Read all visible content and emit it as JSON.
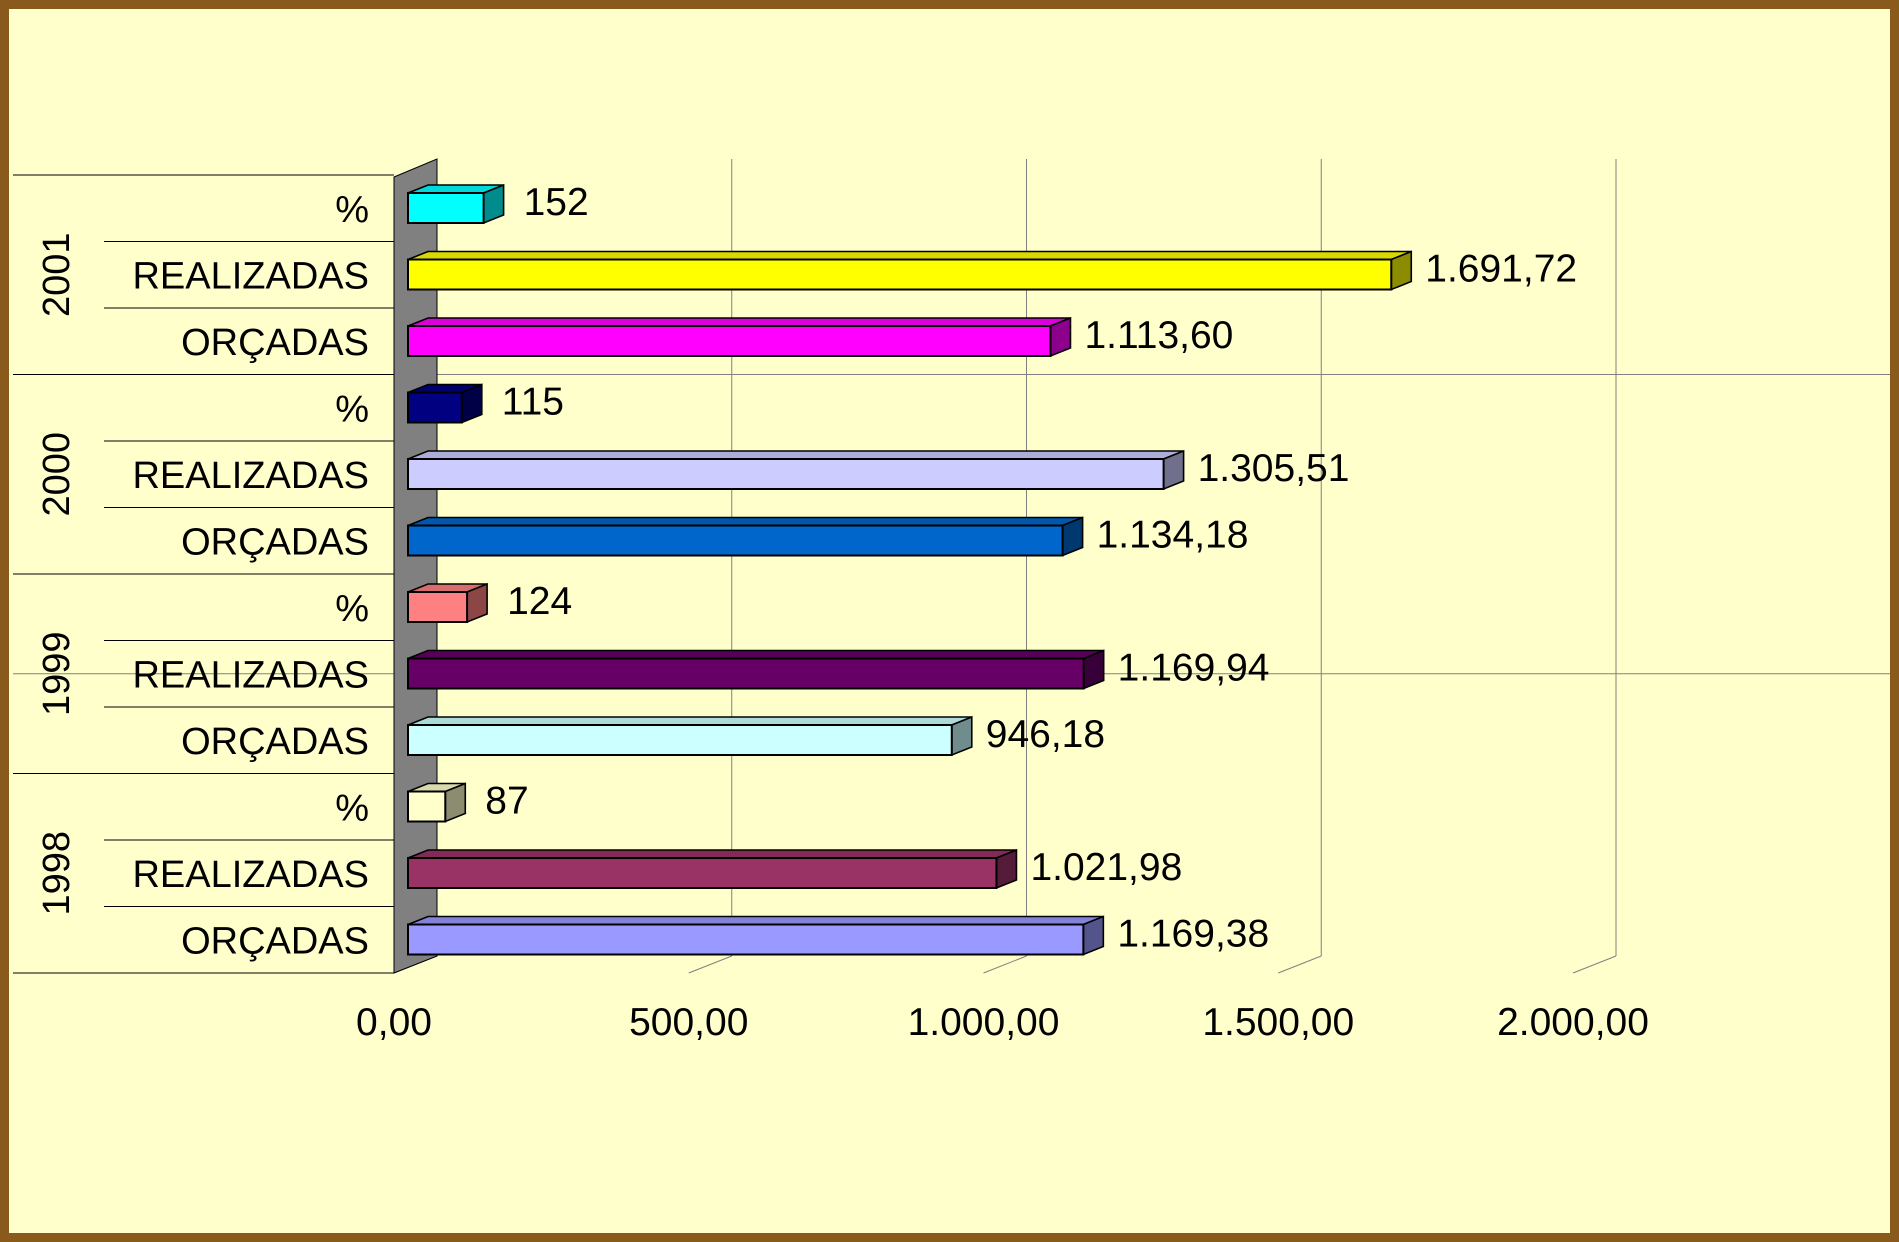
{
  "chart_data": {
    "type": "bar",
    "orientation": "horizontal",
    "style": "3d",
    "groups": [
      {
        "year": "1998",
        "bars": [
          {
            "category": "ORÇADAS",
            "value": 1169.38,
            "label": "1.169,38",
            "color": "#9999ff"
          },
          {
            "category": "REALIZADAS",
            "value": 1021.98,
            "label": "1.021,98",
            "color": "#993366"
          },
          {
            "category": "%",
            "value": 87,
            "label": "87",
            "color": "#ffffcc"
          }
        ]
      },
      {
        "year": "1999",
        "bars": [
          {
            "category": "ORÇADAS",
            "value": 946.18,
            "label": "946,18",
            "color": "#ccffff"
          },
          {
            "category": "REALIZADAS",
            "value": 1169.94,
            "label": "1.169,94",
            "color": "#660066"
          },
          {
            "category": "%",
            "value": 124,
            "label": "124",
            "color": "#ff8080"
          }
        ]
      },
      {
        "year": "2000",
        "bars": [
          {
            "category": "ORÇADAS",
            "value": 1134.18,
            "label": "1.134,18",
            "color": "#0066cc"
          },
          {
            "category": "REALIZADAS",
            "value": 1305.51,
            "label": "1.305,51",
            "color": "#ccccff"
          },
          {
            "category": "%",
            "value": 115,
            "label": "115",
            "color": "#000080"
          }
        ]
      },
      {
        "year": "2001",
        "bars": [
          {
            "category": "ORÇADAS",
            "value": 1113.6,
            "label": "1.113,60",
            "color": "#ff00ff"
          },
          {
            "category": "REALIZADAS",
            "value": 1691.72,
            "label": "1.691,72",
            "color": "#ffff00"
          },
          {
            "category": "%",
            "value": 152,
            "label": "152",
            "color": "#00ffff"
          }
        ]
      }
    ],
    "xlim": [
      0,
      2000
    ],
    "x_ticks": [
      {
        "value": 0,
        "label": "0,00"
      },
      {
        "value": 500,
        "label": "500,00"
      },
      {
        "value": 1000,
        "label": "1.000,00"
      },
      {
        "value": 1500,
        "label": "1.500,00"
      },
      {
        "value": 2000,
        "label": "2.000,00"
      }
    ],
    "grid": true,
    "legend": "none",
    "colors": {
      "background": "#ffffcc",
      "frame": "#8a5a1c",
      "wall": "#808080",
      "wall_top": "#606060"
    }
  }
}
